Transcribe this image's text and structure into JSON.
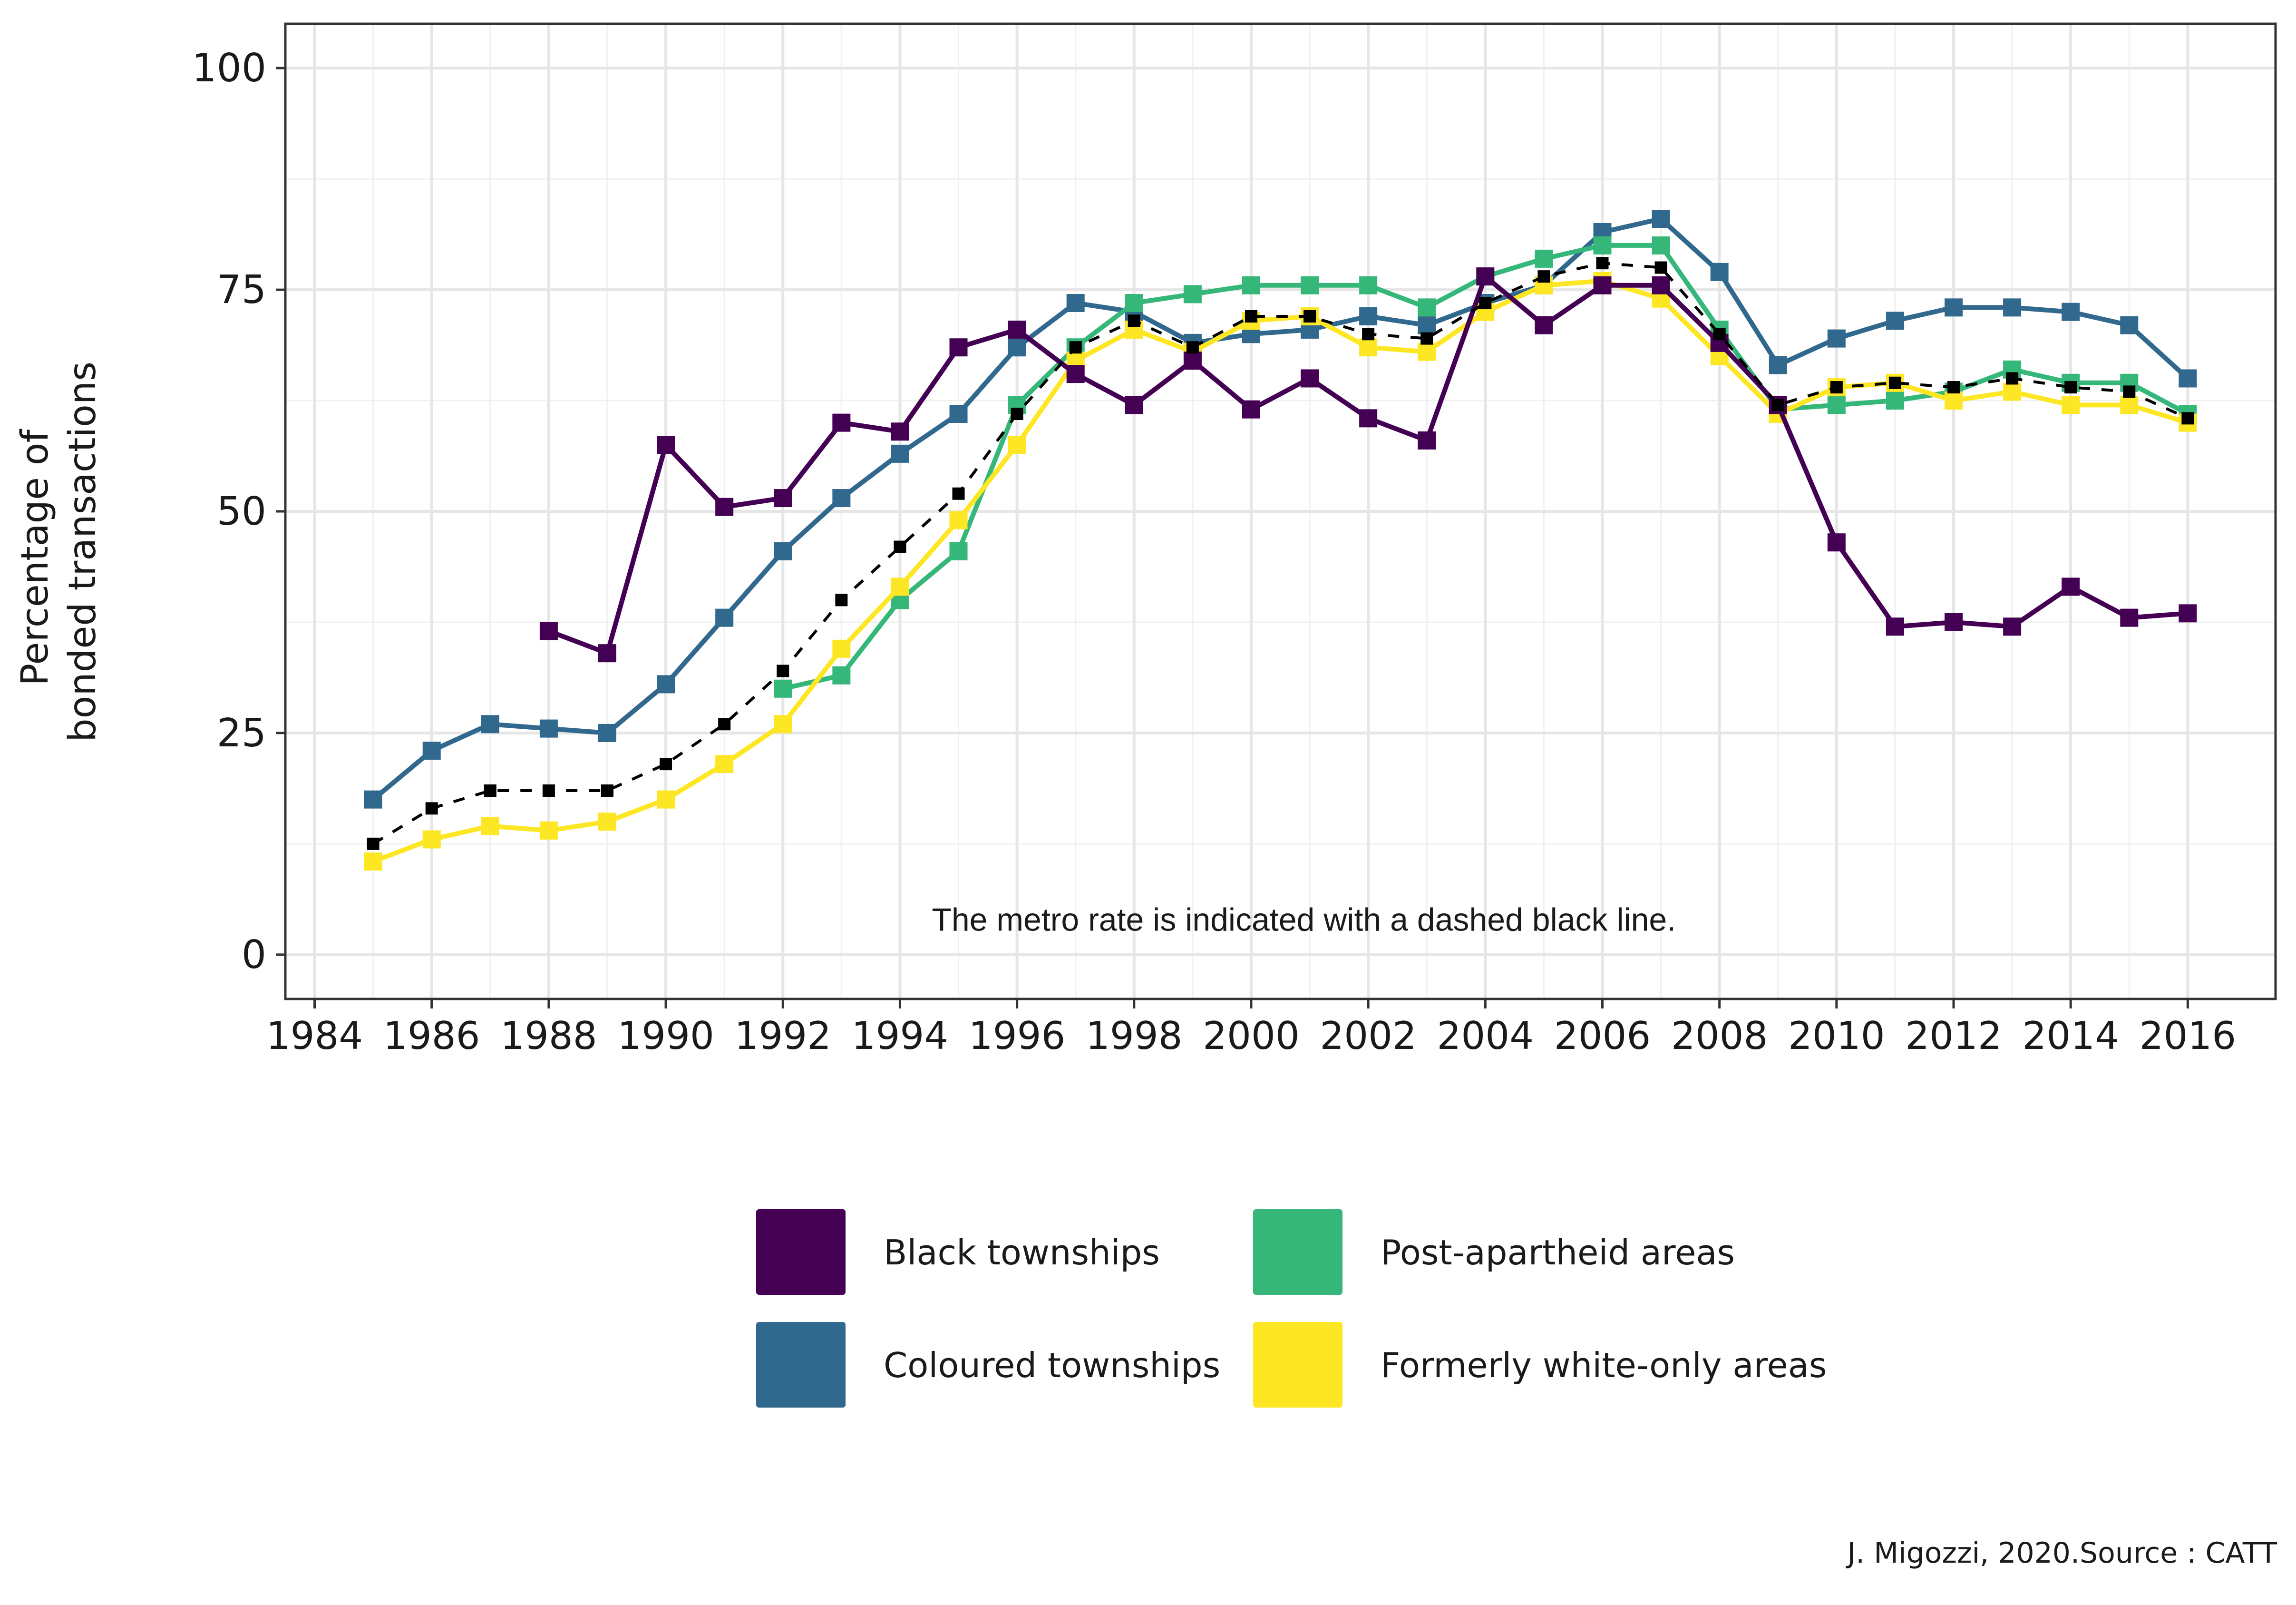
{
  "chart_data": {
    "type": "line",
    "title": "",
    "ylabel_lines": [
      "Percentage of",
      "bonded transactions"
    ],
    "xlabel": "",
    "xlim": [
      1983.5,
      2017.5
    ],
    "ylim": [
      -5,
      105
    ],
    "x_ticks": [
      1984,
      1986,
      1988,
      1990,
      1992,
      1994,
      1996,
      1998,
      2000,
      2002,
      2004,
      2006,
      2008,
      2010,
      2012,
      2014,
      2016
    ],
    "y_ticks": [
      0,
      25,
      50,
      75,
      100
    ],
    "grid": true,
    "annotation": "The metro rate is indicated with a dashed black line.",
    "legend": {
      "position": "bottom",
      "entries": [
        {
          "label": "Black townships",
          "color": "#440154"
        },
        {
          "label": "Post-apartheid areas",
          "color": "#35B779"
        },
        {
          "label": "Coloured townships",
          "color": "#31688E"
        },
        {
          "label": "Formerly white-only areas",
          "color": "#FDE725"
        }
      ]
    },
    "series": [
      {
        "color": "#31688E",
        "style": "solid",
        "x": [
          1985,
          1986,
          1987,
          1988,
          1989,
          1990,
          1991,
          1992,
          1993,
          1994,
          1995,
          1996,
          1997,
          1998,
          1999,
          2000,
          2001,
          2002,
          2003,
          2004,
          2005,
          2006,
          2007,
          2008,
          2009,
          2010,
          2011,
          2012,
          2013,
          2014,
          2015,
          2016
        ],
        "y": [
          17.5,
          23,
          26,
          25.5,
          25,
          30.5,
          38,
          45.5,
          51.5,
          56.5,
          61,
          68.5,
          73.5,
          72.5,
          69,
          70,
          70.5,
          72,
          71,
          73.5,
          75.5,
          81.5,
          83,
          77,
          66.5,
          69.5,
          71.5,
          73,
          73,
          72.5,
          71,
          65
        ]
      },
      {
        "color": "#35B779",
        "style": "solid",
        "x": [
          1992,
          1993,
          1994,
          1995,
          1996,
          1997,
          1998,
          1999,
          2000,
          2001,
          2002,
          2003,
          2004,
          2005,
          2006,
          2007,
          2008,
          2009,
          2010,
          2011,
          2012,
          2013,
          2014,
          2015,
          2016
        ],
        "y": [
          30,
          31.5,
          40,
          45.5,
          62,
          68.5,
          73.5,
          74.5,
          75.5,
          75.5,
          75.5,
          73,
          76.5,
          78.5,
          80,
          80,
          70.5,
          61.5,
          62,
          62.5,
          63.5,
          66,
          64.5,
          64.5,
          61
        ]
      },
      {
        "color": "#FDE725",
        "style": "solid",
        "x": [
          1985,
          1986,
          1987,
          1988,
          1989,
          1990,
          1991,
          1992,
          1993,
          1994,
          1995,
          1996,
          1997,
          1998,
          1999,
          2000,
          2001,
          2002,
          2003,
          2004,
          2005,
          2006,
          2007,
          2008,
          2009,
          2010,
          2011,
          2012,
          2013,
          2014,
          2015,
          2016
        ],
        "y": [
          10.5,
          13,
          14.5,
          14,
          15,
          17.5,
          21.5,
          26,
          34.5,
          41.5,
          49,
          57.5,
          67,
          70.5,
          68,
          71.5,
          72,
          68.5,
          68,
          72.5,
          75.5,
          76,
          74,
          67.5,
          61,
          64,
          64.5,
          62.5,
          63.5,
          62,
          62,
          60
        ]
      },
      {
        "color": "#440154",
        "style": "solid",
        "x": [
          1988,
          1989,
          1990,
          1991,
          1992,
          1993,
          1994,
          1995,
          1996,
          1997,
          1998,
          1999,
          2000,
          2001,
          2002,
          2003,
          2004,
          2005,
          2006,
          2007,
          2008,
          2009,
          2010,
          2011,
          2012,
          2013,
          2014,
          2015,
          2016
        ],
        "y": [
          36.5,
          34,
          57.5,
          50.5,
          51.5,
          60,
          59,
          68.5,
          70.5,
          65.5,
          62,
          67,
          61.5,
          65,
          60.5,
          58,
          76.5,
          71,
          75.5,
          75.5,
          69,
          62,
          46.5,
          37,
          37.5,
          37,
          41.5,
          38,
          38.5
        ]
      },
      {
        "color": "#000000",
        "style": "dashed",
        "x": [
          1985,
          1986,
          1987,
          1988,
          1989,
          1990,
          1991,
          1992,
          1993,
          1994,
          1995,
          1996,
          1997,
          1998,
          1999,
          2000,
          2001,
          2002,
          2003,
          2004,
          2005,
          2006,
          2007,
          2008,
          2009,
          2010,
          2011,
          2012,
          2013,
          2014,
          2015,
          2016
        ],
        "y": [
          12.5,
          16.5,
          18.5,
          18.5,
          18.5,
          21.5,
          26,
          32,
          40,
          46,
          52,
          61,
          68.5,
          71.5,
          68.5,
          72,
          72,
          70,
          69.5,
          73.5,
          76.5,
          78,
          77.5,
          70,
          62,
          64,
          64.5,
          64,
          65,
          64,
          63.5,
          60.5
        ]
      }
    ]
  },
  "caption": "J. Migozzi, 2020.Source : CATT"
}
